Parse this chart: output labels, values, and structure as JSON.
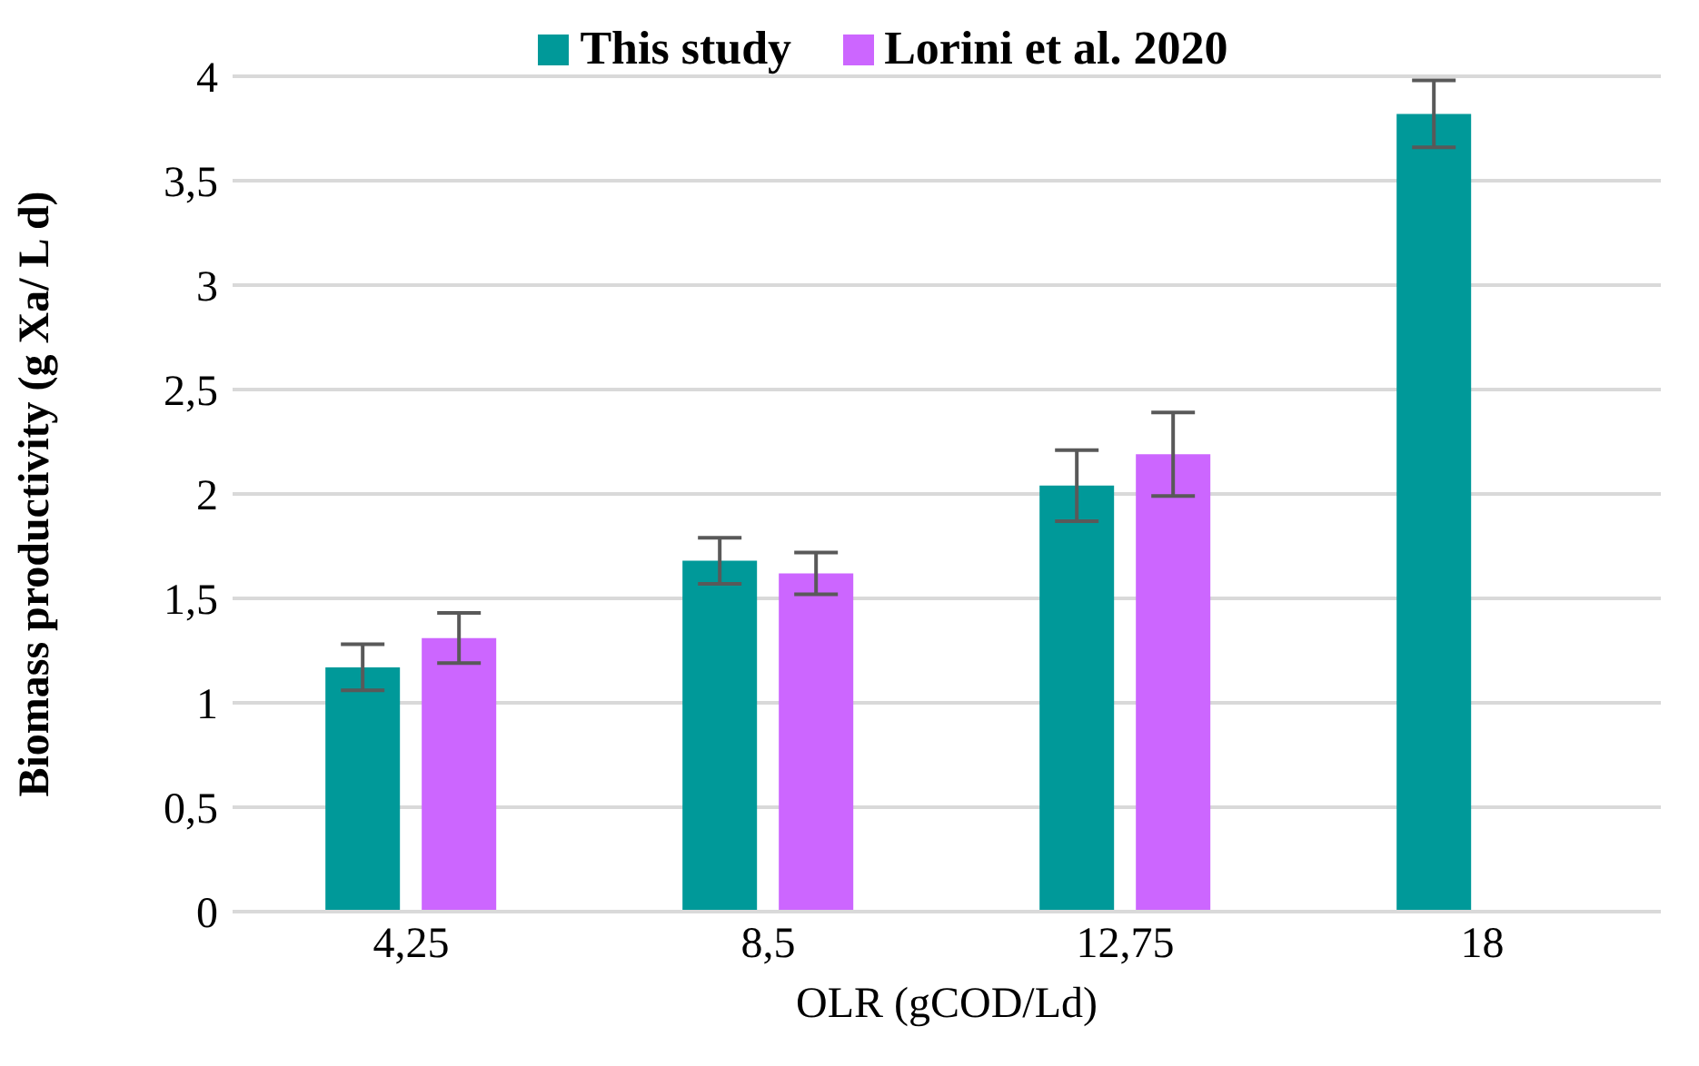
{
  "chart_data": {
    "type": "bar",
    "xlabel": "OLR (gCOD/Ld)",
    "ylabel": "Biomass productivity (g Xa/ L d)",
    "categories": [
      "4,25",
      "8,5",
      "12,75",
      "18"
    ],
    "series": [
      {
        "name": "This study",
        "color": "#009999",
        "values": [
          1.17,
          1.68,
          2.04,
          3.82
        ],
        "errors": [
          0.11,
          0.11,
          0.17,
          0.16
        ]
      },
      {
        "name": "Lorini et al. 2020",
        "color": "#cc66ff",
        "values": [
          1.31,
          1.62,
          2.19,
          null
        ],
        "errors": [
          0.12,
          0.1,
          0.2,
          null
        ]
      }
    ],
    "ylim": [
      0,
      4
    ],
    "yticks": [
      0,
      {
        "value": 0.5,
        "label": "0,5"
      },
      1,
      {
        "value": 1.5,
        "label": "1,5"
      },
      2,
      {
        "value": 2.5,
        "label": "2,5"
      },
      3,
      {
        "value": 3.5,
        "label": "3,5"
      },
      4
    ],
    "grid": "y",
    "legend": "top"
  }
}
